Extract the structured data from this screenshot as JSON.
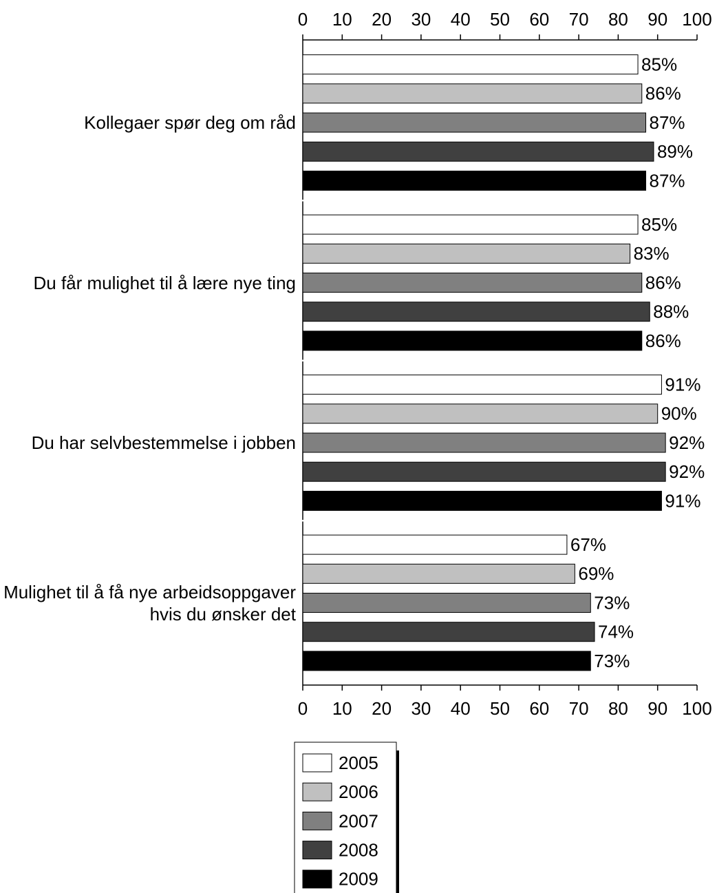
{
  "chart_data": {
    "type": "bar",
    "orientation": "horizontal",
    "categories": [
      "Kollegaer spør deg om råd",
      "Du får mulighet til å lære nye ting",
      "Du har selvbestemmelse i jobben",
      "Mulighet til å få nye arbeidsoppgaver hvis du ønsker det"
    ],
    "series": [
      {
        "name": "2005",
        "color": "#ffffff",
        "values": [
          85,
          85,
          91,
          67
        ],
        "value_labels": [
          "85%",
          "85%",
          "91%",
          "67%"
        ]
      },
      {
        "name": "2006",
        "color": "#c0c0c0",
        "values": [
          86,
          83,
          90,
          69
        ],
        "value_labels": [
          "86%",
          "83%",
          "90%",
          "69%"
        ]
      },
      {
        "name": "2007",
        "color": "#808080",
        "values": [
          87,
          86,
          92,
          73
        ],
        "value_labels": [
          "87%",
          "86%",
          "92%",
          "73%"
        ]
      },
      {
        "name": "2008",
        "color": "#404040",
        "values": [
          89,
          88,
          92,
          74
        ],
        "value_labels": [
          "89%",
          "88%",
          "92%",
          "74%"
        ]
      },
      {
        "name": "2009",
        "color": "#000000",
        "values": [
          87,
          86,
          91,
          73
        ],
        "value_labels": [
          "87%",
          "86%",
          "91%",
          "73%"
        ]
      }
    ],
    "xlim": [
      0,
      100
    ],
    "xticks": [
      0,
      10,
      20,
      30,
      40,
      50,
      60,
      70,
      80,
      90,
      100
    ]
  }
}
